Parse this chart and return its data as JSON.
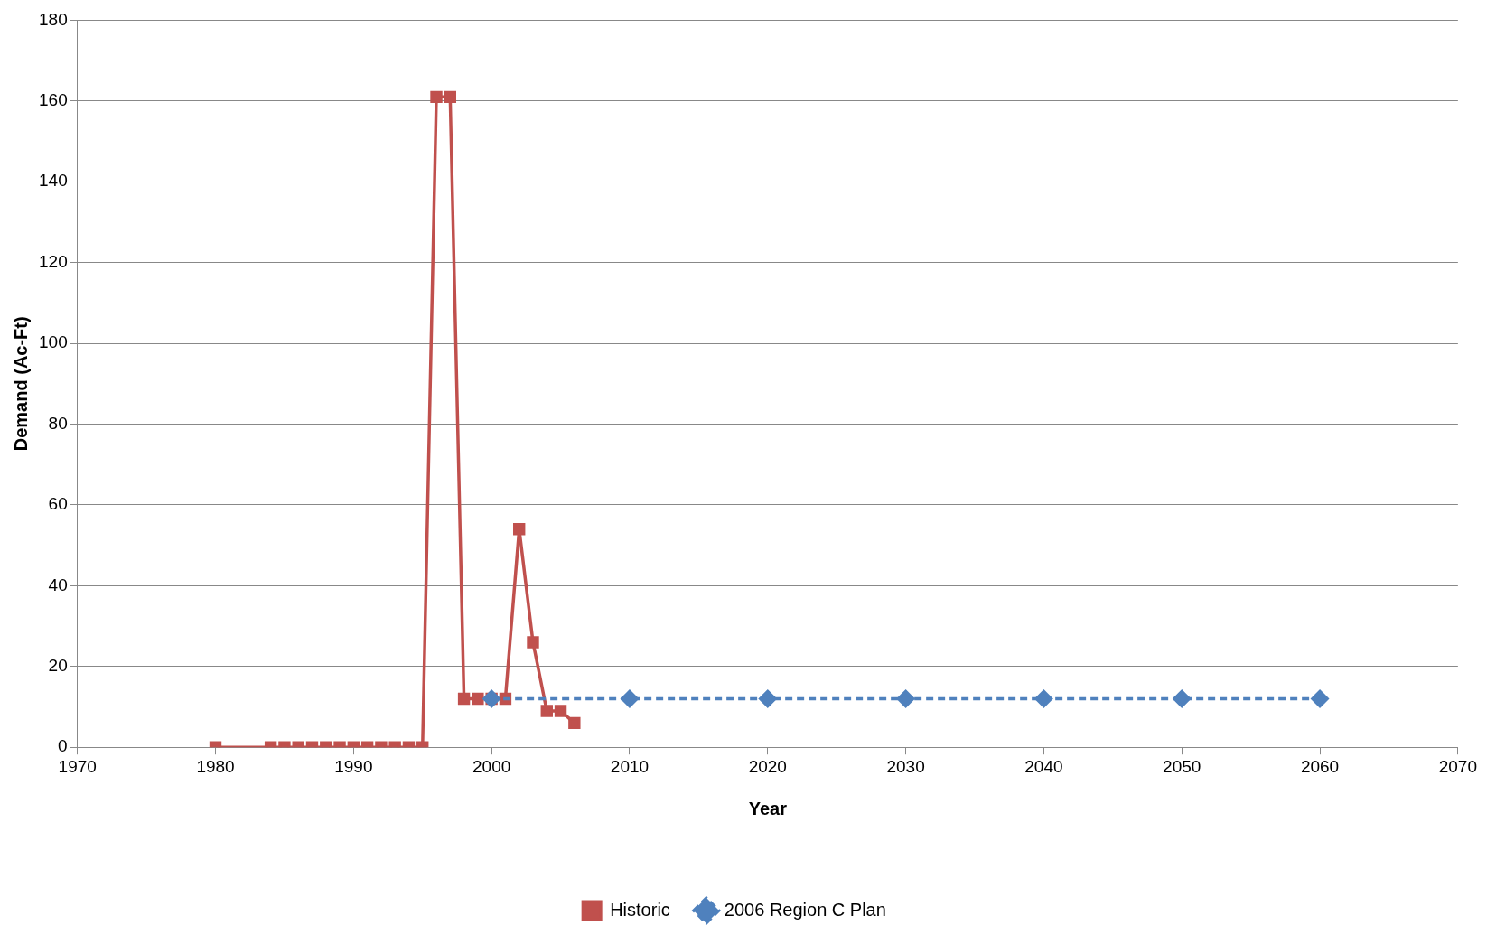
{
  "chart_data": {
    "type": "line",
    "xlabel": "Year",
    "ylabel": "Demand (Ac-Ft)",
    "xlim": [
      1970,
      2070
    ],
    "xticks": [
      1970,
      1980,
      1990,
      2000,
      2010,
      2020,
      2030,
      2040,
      2050,
      2060,
      2070
    ],
    "ylim": [
      0,
      180
    ],
    "yticks": [
      0,
      20,
      40,
      60,
      80,
      100,
      120,
      140,
      160,
      180
    ],
    "grid": "y",
    "legend": "bottom",
    "series": [
      {
        "name": "Historic",
        "color": "#c0504d",
        "marker": "square",
        "line_style": "solid",
        "x": [
          1980,
          1984,
          1985,
          1986,
          1987,
          1988,
          1989,
          1990,
          1991,
          1992,
          1993,
          1994,
          1995,
          1996,
          1997,
          1998,
          1999,
          2000,
          2001,
          2002,
          2003,
          2004,
          2005,
          2006
        ],
        "values": [
          0,
          0,
          0,
          0,
          0,
          0,
          0,
          0,
          0,
          0,
          0,
          0,
          0,
          161,
          161,
          12,
          12,
          12,
          12,
          54,
          26,
          9,
          9,
          6
        ]
      },
      {
        "name": "2006 Region C Plan",
        "color": "#4f81bd",
        "marker": "diamond",
        "line_style": "dashed",
        "x": [
          2000,
          2010,
          2020,
          2030,
          2040,
          2050,
          2060
        ],
        "values": [
          12,
          12,
          12,
          12,
          12,
          12,
          12
        ]
      }
    ]
  }
}
